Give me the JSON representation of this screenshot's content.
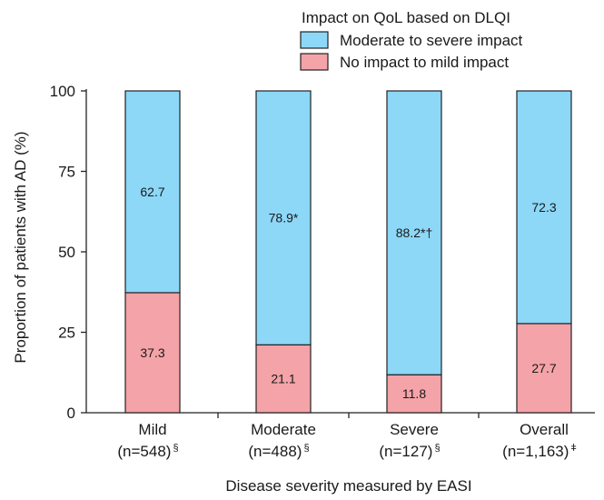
{
  "chart_data": {
    "type": "bar",
    "stacked": true,
    "legend_title": "Impact on QoL based on DLQI",
    "legend_position": "top-right",
    "categories": [
      "Mild",
      "Moderate",
      "Severe",
      "Overall"
    ],
    "category_n": [
      "(n=548)",
      "(n=488)",
      "(n=127)",
      "(n=1,163)"
    ],
    "category_n_marks": [
      "§",
      "§",
      "§",
      "ǂ"
    ],
    "series": [
      {
        "name": "No impact to mild impact",
        "color": "#f4a3a8",
        "values": [
          37.3,
          21.1,
          11.8,
          27.7
        ],
        "labels": [
          "37.3",
          "21.1",
          "11.8",
          "27.7"
        ]
      },
      {
        "name": "Moderate to severe impact",
        "color": "#8dd7f7",
        "values": [
          62.7,
          78.9,
          88.2,
          72.3
        ],
        "labels": [
          "62.7",
          "78.9*",
          "88.2*†",
          "72.3"
        ]
      }
    ],
    "legend_order": [
      1,
      0
    ],
    "xlabel": "Disease severity measured by EASI",
    "ylabel": "Proportion of patients with AD (%)",
    "ylim": [
      0,
      100
    ],
    "yticks": [
      0,
      25,
      50,
      75,
      100
    ],
    "grid": false
  }
}
